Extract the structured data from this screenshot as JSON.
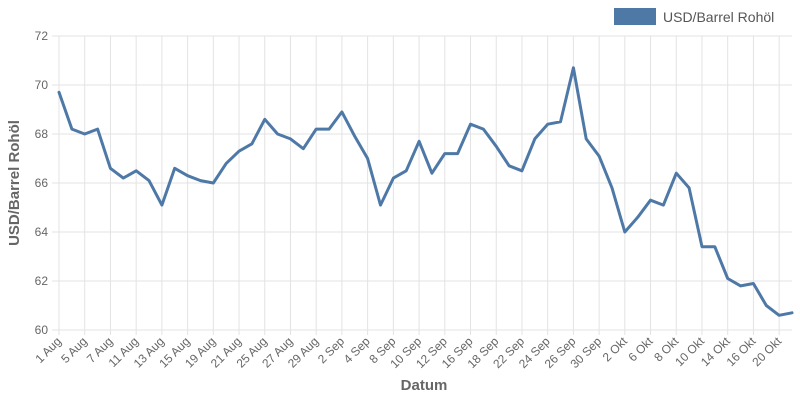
{
  "chart_data": {
    "type": "line",
    "xlabel": "Datum",
    "ylabel": "USD/Barrel Rohöl",
    "ylim": [
      60,
      72
    ],
    "yticks": [
      60,
      62,
      64,
      66,
      68,
      70,
      72
    ],
    "grid": true,
    "legend_position": "top-right",
    "series": [
      {
        "name": "USD/Barrel Rohöl",
        "color": "#4e79a7",
        "values": [
          69.7,
          68.2,
          68.0,
          68.2,
          66.6,
          66.2,
          66.5,
          66.1,
          65.1,
          66.6,
          66.3,
          66.1,
          66.0,
          66.8,
          67.3,
          67.6,
          68.6,
          68.0,
          67.8,
          67.4,
          68.2,
          68.2,
          68.9,
          67.9,
          67.0,
          65.1,
          66.2,
          66.5,
          67.7,
          66.4,
          67.2,
          67.2,
          68.4,
          68.2,
          67.5,
          66.7,
          66.5,
          67.8,
          68.4,
          68.5,
          70.7,
          67.8,
          67.1,
          65.8,
          64.0,
          64.6,
          65.3,
          65.1,
          66.4,
          65.8,
          63.4,
          63.4,
          62.1,
          61.8,
          61.9,
          61.0,
          60.6,
          60.7
        ]
      }
    ],
    "x_tick_labels": [
      "1 Aug",
      "5 Aug",
      "7 Aug",
      "11 Aug",
      "13 Aug",
      "15 Aug",
      "19 Aug",
      "21 Aug",
      "25 Aug",
      "27 Aug",
      "29 Aug",
      "2 Sep",
      "4 Sep",
      "8 Sep",
      "10 Sep",
      "12 Sep",
      "16 Sep",
      "18 Sep",
      "22 Sep",
      "24 Sep",
      "26 Sep",
      "30 Sep",
      "2 Okt",
      "6 Okt",
      "8 Okt",
      "10 Okt",
      "14 Okt",
      "16 Okt",
      "20 Okt"
    ]
  }
}
